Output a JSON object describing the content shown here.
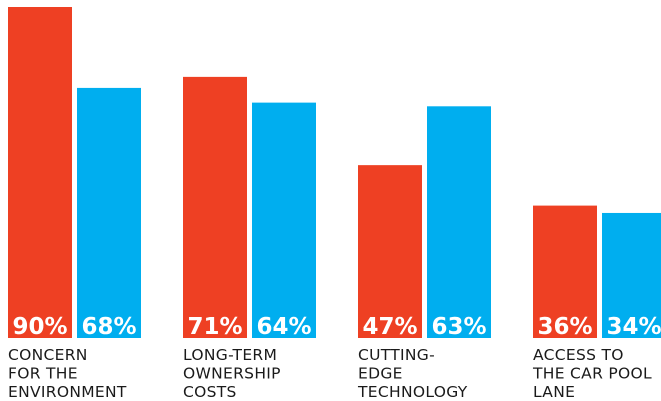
{
  "chart_data": {
    "type": "bar",
    "categories": [
      [
        "CONCERN",
        "FOR THE",
        "ENVIRONMENT"
      ],
      [
        "LONG-TERM",
        "OWNERSHIP",
        "COSTS"
      ],
      [
        "CUTTING-",
        "EDGE",
        "TECHNOLOGY"
      ],
      [
        "ACCESS TO",
        "THE CAR POOL",
        "LANE"
      ]
    ],
    "series": [
      {
        "values": [
          90,
          71,
          47,
          36
        ],
        "labels": [
          "90%",
          "71%",
          "47%",
          "36%"
        ],
        "color": "#ee4023"
      },
      {
        "values": [
          68,
          64,
          63,
          34
        ],
        "labels": [
          "68%",
          "64%",
          "63%",
          "34%"
        ],
        "color": "#00aeef"
      }
    ],
    "ylim": [
      0,
      90
    ],
    "grid": false,
    "legend": "none"
  }
}
